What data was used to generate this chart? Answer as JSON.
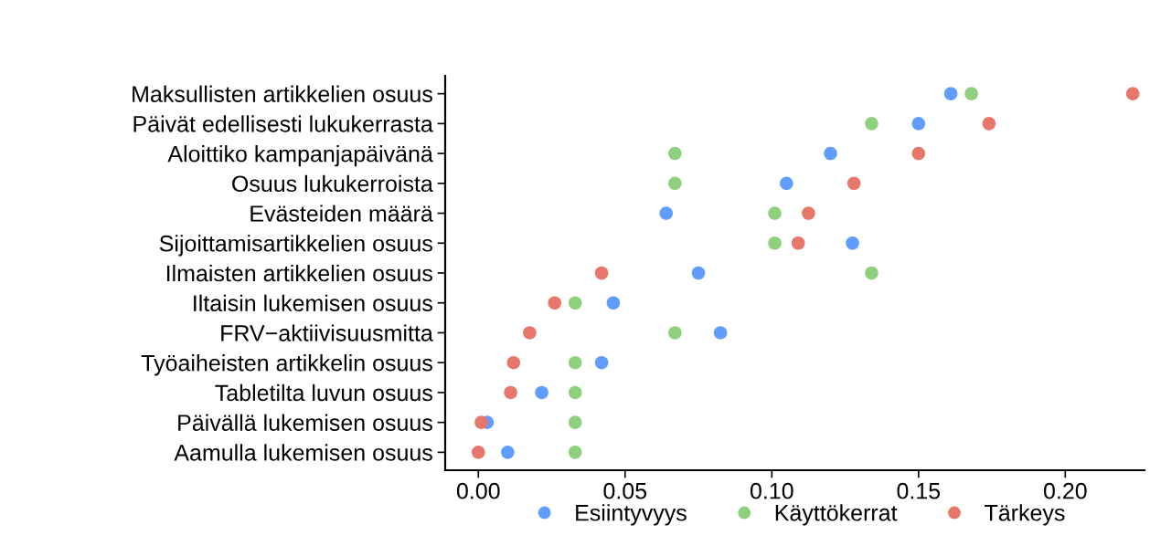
{
  "chart_data": {
    "type": "scatter",
    "orientation": "horizontal",
    "categories": [
      "Maksullisten artikkelien osuus",
      "Päivät edellisesti lukukerrasta",
      "Aloittiko kampanjapäivänä",
      "Osuus lukukerroista",
      "Evästeiden määrä",
      "Sijoittamisartikkelien osuus",
      "Ilmaisten artikkelien osuus",
      "Iltaisin lukemisen osuus",
      "FRV−aktiivisuusmitta",
      "Työaiheisten artikkelin osuus",
      "Tabletilta luvun osuus",
      "Päivällä lukemisen osuus",
      "Aamulla lukemisen osuus"
    ],
    "series": [
      {
        "name": "Esiintyvyys",
        "color": "#619cff",
        "values": [
          0.161,
          0.15,
          0.12,
          0.105,
          0.064,
          0.1275,
          0.075,
          0.046,
          0.0825,
          0.042,
          0.0216,
          0.003,
          0.01
        ]
      },
      {
        "name": "Käyttökerrat",
        "color": "#8fd07f",
        "values": [
          0.168,
          0.134,
          0.067,
          0.067,
          0.101,
          0.101,
          0.134,
          0.033,
          0.067,
          0.033,
          0.033,
          0.033,
          0.033
        ]
      },
      {
        "name": "Tärkeys",
        "color": "#e7766b",
        "values": [
          0.223,
          0.174,
          0.15,
          0.128,
          0.1125,
          0.109,
          0.042,
          0.026,
          0.0175,
          0.012,
          0.011,
          0.001,
          0.0
        ]
      }
    ],
    "xlim": [
      -0.0113,
      0.227
    ],
    "xticks": [
      {
        "value": 0,
        "label": "0.00"
      },
      {
        "value": 0.05,
        "label": "0.05"
      },
      {
        "value": 0.1,
        "label": "0.10"
      },
      {
        "value": 0.15,
        "label": "0.15"
      },
      {
        "value": 0.2,
        "label": "0.20"
      }
    ],
    "grid": false,
    "legend": "bottom",
    "marker": "circle"
  }
}
